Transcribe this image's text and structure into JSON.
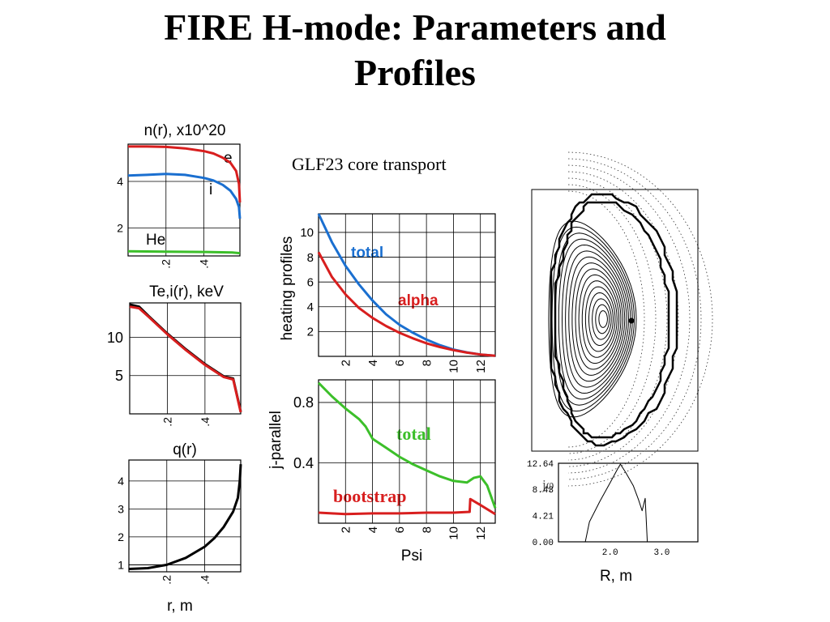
{
  "page": {
    "title_line1": "FIRE H-mode: Parameters and",
    "title_line2": "Profiles",
    "subtitle": "GLF23 core transport"
  },
  "colors": {
    "blue": "#1a6fd0",
    "red": "#d81e1e",
    "green": "#3cbf2a",
    "black": "#000000"
  },
  "chart_data": [
    {
      "id": "density",
      "type": "line",
      "title": "n(r), x10^20",
      "xlim": [
        0,
        0.59
      ],
      "ylim": [
        0.8,
        5.6
      ],
      "xticks": [
        {
          "v": 0.2,
          "label": ".2"
        },
        {
          "v": 0.4,
          "label": ".4"
        }
      ],
      "yticks": [
        {
          "v": 2,
          "label": "2"
        },
        {
          "v": 4,
          "label": "4"
        }
      ],
      "series": [
        {
          "name": "e",
          "color": "#d81e1e",
          "points": [
            [
              0,
              5.5
            ],
            [
              0.1,
              5.5
            ],
            [
              0.2,
              5.48
            ],
            [
              0.3,
              5.42
            ],
            [
              0.4,
              5.3
            ],
            [
              0.45,
              5.2
            ],
            [
              0.5,
              5.02
            ],
            [
              0.54,
              4.8
            ],
            [
              0.57,
              4.45
            ],
            [
              0.585,
              3.9
            ],
            [
              0.59,
              3.1
            ]
          ]
        },
        {
          "name": "i",
          "color": "#1a6fd0",
          "points": [
            [
              0,
              4.25
            ],
            [
              0.1,
              4.28
            ],
            [
              0.2,
              4.32
            ],
            [
              0.3,
              4.28
            ],
            [
              0.4,
              4.15
            ],
            [
              0.45,
              4.04
            ],
            [
              0.5,
              3.85
            ],
            [
              0.54,
              3.6
            ],
            [
              0.57,
              3.25
            ],
            [
              0.585,
              2.9
            ],
            [
              0.59,
              2.4
            ]
          ]
        },
        {
          "name": "He",
          "color": "#3cbf2a",
          "points": [
            [
              0,
              1.0
            ],
            [
              0.2,
              0.98
            ],
            [
              0.4,
              0.97
            ],
            [
              0.55,
              0.95
            ],
            [
              0.59,
              0.92
            ]
          ]
        }
      ]
    },
    {
      "id": "temperature",
      "type": "line",
      "title": "Te,i(r), keV",
      "xlim": [
        0,
        0.59
      ],
      "ylim": [
        0,
        14.5
      ],
      "xticks": [
        {
          "v": 0.2,
          "label": ".2"
        },
        {
          "v": 0.4,
          "label": ".4"
        }
      ],
      "yticks": [
        {
          "v": 5,
          "label": "5"
        },
        {
          "v": 10,
          "label": "10"
        }
      ],
      "series": [
        {
          "name": "Te",
          "color": "#000000",
          "points": [
            [
              0,
              14.3
            ],
            [
              0.05,
              14.0
            ],
            [
              0.1,
              12.8
            ],
            [
              0.2,
              10.5
            ],
            [
              0.3,
              8.4
            ],
            [
              0.4,
              6.5
            ],
            [
              0.5,
              4.9
            ],
            [
              0.55,
              4.6
            ],
            [
              0.59,
              0.3
            ]
          ]
        },
        {
          "name": "Ti",
          "color": "#d81e1e",
          "points": [
            [
              0,
              14.0
            ],
            [
              0.05,
              13.8
            ],
            [
              0.1,
              12.7
            ],
            [
              0.2,
              10.4
            ],
            [
              0.3,
              8.3
            ],
            [
              0.4,
              6.4
            ],
            [
              0.5,
              4.8
            ],
            [
              0.55,
              4.5
            ],
            [
              0.59,
              0.2
            ]
          ]
        }
      ]
    },
    {
      "id": "safety_factor",
      "type": "line",
      "title": "q(r)",
      "xlabel": "r, m",
      "xlim": [
        0,
        0.59
      ],
      "ylim": [
        0.75,
        4.75
      ],
      "xticks": [
        {
          "v": 0.2,
          "label": ".2"
        },
        {
          "v": 0.4,
          "label": ".4"
        }
      ],
      "yticks": [
        {
          "v": 1,
          "label": "1"
        },
        {
          "v": 2,
          "label": "2"
        },
        {
          "v": 3,
          "label": "3"
        },
        {
          "v": 4,
          "label": "4"
        }
      ],
      "series": [
        {
          "name": "q",
          "color": "#000000",
          "points": [
            [
              0,
              0.85
            ],
            [
              0.1,
              0.88
            ],
            [
              0.2,
              1.0
            ],
            [
              0.3,
              1.25
            ],
            [
              0.4,
              1.65
            ],
            [
              0.45,
              1.95
            ],
            [
              0.5,
              2.35
            ],
            [
              0.55,
              2.9
            ],
            [
              0.575,
              3.4
            ],
            [
              0.585,
              4.0
            ],
            [
              0.59,
              4.6
            ]
          ]
        }
      ]
    },
    {
      "id": "heating",
      "type": "line",
      "xlim": [
        0,
        13.1
      ],
      "ylim": [
        0,
        11.5
      ],
      "ylabel": "heating profiles",
      "xticks": [
        {
          "v": 2,
          "label": "2"
        },
        {
          "v": 4,
          "label": "4"
        },
        {
          "v": 6,
          "label": "6"
        },
        {
          "v": 8,
          "label": "8"
        },
        {
          "v": 10,
          "label": "10"
        },
        {
          "v": 12,
          "label": "12"
        }
      ],
      "yticks": [
        {
          "v": 2,
          "label": "2"
        },
        {
          "v": 4,
          "label": "4"
        },
        {
          "v": 6,
          "label": "6"
        },
        {
          "v": 8,
          "label": "8"
        },
        {
          "v": 10,
          "label": "10"
        }
      ],
      "series": [
        {
          "name": "total",
          "color": "#1a6fd0",
          "points": [
            [
              0,
              11.5
            ],
            [
              1,
              9.2
            ],
            [
              2,
              7.3
            ],
            [
              3,
              5.8
            ],
            [
              4,
              4.5
            ],
            [
              5,
              3.4
            ],
            [
              6,
              2.55
            ],
            [
              7,
              1.9
            ],
            [
              8,
              1.35
            ],
            [
              9,
              0.9
            ],
            [
              10,
              0.55
            ],
            [
              11,
              0.32
            ],
            [
              12,
              0.15
            ],
            [
              13.1,
              0.05
            ]
          ]
        },
        {
          "name": "alpha",
          "color": "#d81e1e",
          "points": [
            [
              0,
              8.4
            ],
            [
              1,
              6.4
            ],
            [
              2,
              5.0
            ],
            [
              3,
              3.9
            ],
            [
              4,
              3.1
            ],
            [
              5,
              2.45
            ],
            [
              6,
              1.9
            ],
            [
              7,
              1.45
            ],
            [
              8,
              1.05
            ],
            [
              9,
              0.75
            ],
            [
              10,
              0.5
            ],
            [
              11,
              0.3
            ],
            [
              12,
              0.15
            ],
            [
              13.1,
              0.05
            ]
          ]
        }
      ]
    },
    {
      "id": "current",
      "type": "line",
      "xlim": [
        0,
        13.1
      ],
      "ylim": [
        0,
        0.95
      ],
      "xlabel": "Psi",
      "ylabel": "j-parallel",
      "xticks": [
        {
          "v": 2,
          "label": "2"
        },
        {
          "v": 4,
          "label": "4"
        },
        {
          "v": 6,
          "label": "6"
        },
        {
          "v": 8,
          "label": "8"
        },
        {
          "v": 10,
          "label": "10"
        },
        {
          "v": 12,
          "label": "12"
        }
      ],
      "yticks": [
        {
          "v": 0.4,
          "label": "0.4"
        },
        {
          "v": 0.8,
          "label": "0.8"
        }
      ],
      "series": [
        {
          "name": "total",
          "color": "#3cbf2a",
          "points": [
            [
              0,
              0.93
            ],
            [
              1,
              0.84
            ],
            [
              2,
              0.76
            ],
            [
              3,
              0.69
            ],
            [
              3.5,
              0.64
            ],
            [
              4,
              0.56
            ],
            [
              5,
              0.5
            ],
            [
              6,
              0.44
            ],
            [
              7,
              0.39
            ],
            [
              8,
              0.35
            ],
            [
              9,
              0.31
            ],
            [
              10,
              0.28
            ],
            [
              11,
              0.27
            ],
            [
              11.5,
              0.3
            ],
            [
              12,
              0.31
            ],
            [
              12.5,
              0.25
            ],
            [
              13.1,
              0.1
            ]
          ]
        },
        {
          "name": "bootstrap",
          "color": "#d81e1e",
          "points": [
            [
              0,
              0.07
            ],
            [
              2,
              0.06
            ],
            [
              4,
              0.065
            ],
            [
              6,
              0.065
            ],
            [
              8,
              0.07
            ],
            [
              10,
              0.07
            ],
            [
              11.2,
              0.075
            ],
            [
              11.25,
              0.16
            ],
            [
              12,
              0.12
            ],
            [
              13.1,
              0.06
            ]
          ]
        }
      ]
    },
    {
      "id": "jphi",
      "type": "line",
      "xlabel": "R, m",
      "annotation": "jφ",
      "xlim": [
        1.0,
        3.7
      ],
      "ylim": [
        0,
        12.64
      ],
      "xticks": [
        {
          "v": 2.0,
          "label": "2.0"
        },
        {
          "v": 3.0,
          "label": "3.0"
        }
      ],
      "yticks": [
        {
          "v": 0,
          "label": "0.00"
        },
        {
          "v": 4.21,
          "label": "4.21"
        },
        {
          "v": 8.43,
          "label": "8.43"
        },
        {
          "v": 12.64,
          "label": "12.64"
        }
      ],
      "series": [
        {
          "name": "jphi",
          "color": "#000000",
          "points": [
            [
              1.52,
              0
            ],
            [
              1.6,
              3.2
            ],
            [
              1.8,
              6.5
            ],
            [
              2.0,
              9.5
            ],
            [
              2.15,
              11.8
            ],
            [
              2.2,
              12.5
            ],
            [
              2.3,
              11.2
            ],
            [
              2.45,
              9.0
            ],
            [
              2.55,
              6.8
            ],
            [
              2.62,
              5.0
            ],
            [
              2.68,
              7.0
            ],
            [
              2.72,
              0
            ]
          ]
        }
      ]
    }
  ]
}
